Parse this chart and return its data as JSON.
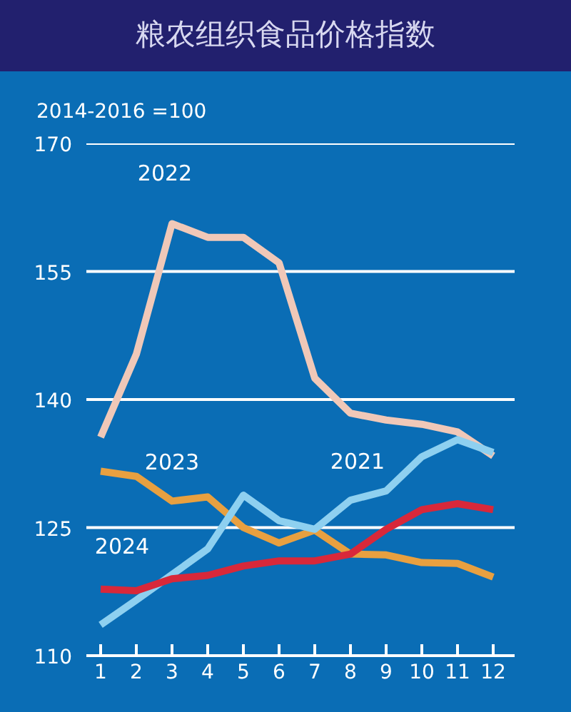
{
  "chart_data": {
    "type": "line",
    "title": "粮农组织食品价格指数",
    "subtitle": "2014-2016 =100",
    "x": [
      1,
      2,
      3,
      4,
      5,
      6,
      7,
      8,
      9,
      10,
      11,
      12
    ],
    "xlim": [
      0.6,
      12.6
    ],
    "xticks": [
      1,
      2,
      3,
      4,
      5,
      6,
      7,
      8,
      9,
      10,
      11,
      12
    ],
    "ylim": [
      110,
      170
    ],
    "yticks": [
      110,
      125,
      140,
      155,
      170
    ],
    "grid": "y",
    "marker": "none",
    "line_style": "solid",
    "series": [
      {
        "name": "2022",
        "color": "#f0c8b8",
        "values": [
          135.6,
          145.3,
          160.6,
          159.0,
          159.0,
          156.0,
          142.5,
          138.4,
          137.6,
          137.1,
          136.2,
          133.4
        ]
      },
      {
        "name": "2023",
        "color": "#e8a040",
        "values": [
          131.6,
          131.0,
          128.1,
          128.6,
          125.0,
          123.2,
          124.7,
          121.9,
          121.8,
          120.9,
          120.8,
          119.2
        ]
      },
      {
        "name": "2021",
        "color": "#8ed0f0",
        "values": [
          113.6,
          116.5,
          119.5,
          122.5,
          128.8,
          125.8,
          124.8,
          128.2,
          129.3,
          133.3,
          135.3,
          133.8
        ]
      },
      {
        "name": "2024",
        "color": "#d8283a",
        "values": [
          117.8,
          117.6,
          119.0,
          119.4,
          120.5,
          121.1,
          121.1,
          121.9,
          124.8,
          127.1,
          127.8,
          127.1
        ]
      }
    ]
  }
}
